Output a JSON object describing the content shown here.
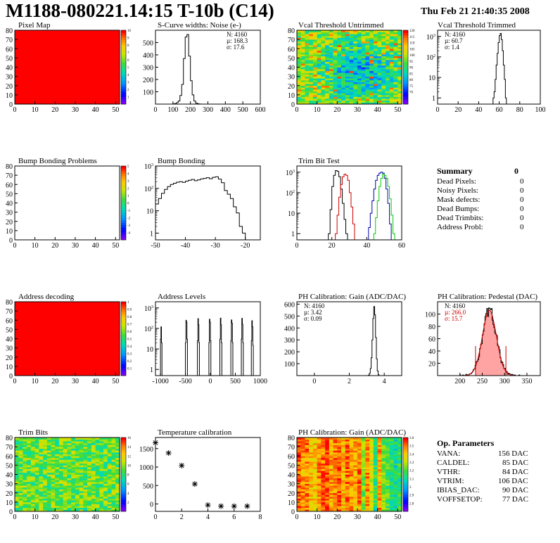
{
  "header": {
    "title": "M1188-080221.14:15 T-10b (C14)",
    "timestamp": "Thu Feb 21 21:40:35 2008"
  },
  "summary": {
    "title": "Summary",
    "total": "0",
    "rows": [
      {
        "label": "Dead Pixels:",
        "value": "0"
      },
      {
        "label": "Noisy Pixels:",
        "value": "0"
      },
      {
        "label": "Mask defects:",
        "value": "0"
      },
      {
        "label": "Dead Bumps:",
        "value": "0"
      },
      {
        "label": "Dead Trimbits:",
        "value": "0"
      },
      {
        "label": "Address Probl:",
        "value": "0"
      }
    ]
  },
  "op_parameters": {
    "title": "Op. Parameters",
    "rows": [
      {
        "label": "VANA:",
        "value": "156 DAC"
      },
      {
        "label": "CALDEL:",
        "value": "85 DAC"
      },
      {
        "label": "VTHR:",
        "value": "84 DAC"
      },
      {
        "label": "VTRIM:",
        "value": "106 DAC"
      },
      {
        "label": "IBIAS_DAC:",
        "value": "90 DAC"
      },
      {
        "label": "VOFFSETOP:",
        "value": "77 DAC"
      }
    ]
  },
  "colors": {
    "histogram_line": "#000000",
    "map_red": "#ff0000",
    "trim_red": "#cc0000",
    "trim_blue": "#0000aa",
    "trim_green": "#00cc00",
    "fit_red": "#cc0000",
    "pedestal_fill": "#ff9999"
  },
  "chart_data": [
    {
      "id": "pixel_map",
      "type": "heatmap",
      "title": "Pixel Map",
      "xlim": [
        0,
        52
      ],
      "ylim": [
        0,
        80
      ],
      "xticks": [
        "0",
        "10",
        "20",
        "30",
        "40",
        "50"
      ],
      "yticks": [
        "0",
        "10",
        "20",
        "30",
        "40",
        "50",
        "60",
        "70",
        "80"
      ],
      "zlim": [
        0,
        10
      ],
      "zticks": [
        "1",
        "2",
        "3",
        "4",
        "5",
        "6",
        "7",
        "8",
        "9",
        "10"
      ],
      "pattern": "uniform",
      "uniform_value": 10
    },
    {
      "id": "scurve",
      "type": "bar",
      "title": "S-Curve widths: Noise (e-)",
      "xlim": [
        0,
        600
      ],
      "ylim": [
        0,
        600
      ],
      "log": false,
      "xticks": [
        "0",
        "100",
        "200",
        "300",
        "400",
        "500",
        "600"
      ],
      "yticks": [
        "100",
        "200",
        "300",
        "400",
        "500"
      ],
      "stats": [
        "N: 4160",
        "µ: 168.3",
        "σ: 17.6"
      ],
      "binwidth": 10,
      "bins": [
        [
          100,
          2
        ],
        [
          110,
          4
        ],
        [
          120,
          12
        ],
        [
          130,
          25
        ],
        [
          140,
          70
        ],
        [
          150,
          160
        ],
        [
          160,
          370
        ],
        [
          170,
          545
        ],
        [
          180,
          565
        ],
        [
          190,
          390
        ],
        [
          200,
          190
        ],
        [
          210,
          75
        ],
        [
          220,
          25
        ],
        [
          230,
          8
        ],
        [
          240,
          3
        ],
        [
          250,
          1
        ]
      ]
    },
    {
      "id": "vcal_untrimmed",
      "type": "heatmap",
      "title": "Vcal Threshold Untrimmed",
      "xlim": [
        0,
        52
      ],
      "ylim": [
        0,
        80
      ],
      "xticks": [
        "0",
        "10",
        "20",
        "30",
        "40",
        "50"
      ],
      "yticks": [
        "0",
        "10",
        "20",
        "30",
        "40",
        "50",
        "60",
        "70",
        "80"
      ],
      "zlim": [
        60,
        120
      ],
      "zticks": [
        "70",
        "75",
        "80",
        "85",
        "90",
        "95",
        "100",
        "105",
        "110",
        "115",
        "120"
      ],
      "pattern": "noise-bowl"
    },
    {
      "id": "vcal_trimmed",
      "type": "bar",
      "title": "Vcal Threshold Trimmed",
      "xlim": [
        0,
        100
      ],
      "ylim": [
        0.5,
        2000
      ],
      "log": true,
      "xticks": [
        "0",
        "20",
        "40",
        "60",
        "80",
        "100"
      ],
      "stats": [
        "N: 4160",
        "µ: 60.7",
        "σ: 1.4"
      ],
      "binwidth": 1,
      "bins": [
        [
          54,
          1
        ],
        [
          55,
          2
        ],
        [
          56,
          8
        ],
        [
          57,
          40
        ],
        [
          58,
          150
        ],
        [
          59,
          500
        ],
        [
          60,
          1100
        ],
        [
          61,
          1400
        ],
        [
          62,
          700
        ],
        [
          63,
          200
        ],
        [
          64,
          40
        ],
        [
          65,
          8
        ],
        [
          66,
          1
        ]
      ]
    },
    {
      "id": "bump_problems",
      "type": "heatmap",
      "title": "Bump Bonding Problems",
      "xlim": [
        0,
        52
      ],
      "ylim": [
        0,
        80
      ],
      "xticks": [
        "0",
        "10",
        "20",
        "30",
        "40",
        "50"
      ],
      "yticks": [
        "0",
        "10",
        "20",
        "30",
        "40",
        "50",
        "60",
        "70",
        "80"
      ],
      "zlim": [
        -5,
        5
      ],
      "zticks": [
        "-4",
        "-3",
        "-2",
        "-1",
        "0",
        "1",
        "2",
        "3",
        "4",
        "5"
      ],
      "pattern": "empty"
    },
    {
      "id": "bump_bonding",
      "type": "bar",
      "title": "Bump Bonding",
      "xlim": [
        -50,
        -15
      ],
      "ylim": [
        0.5,
        1000
      ],
      "log": true,
      "xticks": [
        "-50",
        "-40",
        "-30",
        "-20"
      ],
      "binwidth": 1,
      "bins": [
        [
          -50,
          20
        ],
        [
          -49,
          35
        ],
        [
          -48,
          60
        ],
        [
          -47,
          90
        ],
        [
          -46,
          120
        ],
        [
          -45,
          150
        ],
        [
          -44,
          170
        ],
        [
          -43,
          190
        ],
        [
          -42,
          200
        ],
        [
          -41,
          185
        ],
        [
          -40,
          210
        ],
        [
          -39,
          230
        ],
        [
          -38,
          250
        ],
        [
          -37,
          220
        ],
        [
          -36,
          240
        ],
        [
          -35,
          265
        ],
        [
          -34,
          280
        ],
        [
          -33,
          300
        ],
        [
          -32,
          270
        ],
        [
          -31,
          310
        ],
        [
          -30,
          330
        ],
        [
          -29,
          260
        ],
        [
          -28,
          180
        ],
        [
          -27,
          80
        ],
        [
          -26,
          55
        ],
        [
          -25,
          35
        ],
        [
          -24,
          15
        ],
        [
          -23,
          8
        ],
        [
          -22,
          2
        ],
        [
          -21,
          1
        ]
      ]
    },
    {
      "id": "trim_bit_test",
      "type": "line",
      "title": "Trim Bit Test",
      "xlim": [
        0,
        60
      ],
      "ylim": [
        0.5,
        2000
      ],
      "log": true,
      "xticks": [
        "0",
        "20",
        "40",
        "60"
      ],
      "binwidth": 1,
      "series": [
        {
          "color": "#000000",
          "bins": [
            [
              18,
              1
            ],
            [
              19,
              15
            ],
            [
              20,
              200
            ],
            [
              21,
              700
            ],
            [
              22,
              1200
            ],
            [
              23,
              1100
            ],
            [
              24,
              600
            ],
            [
              25,
              150
            ],
            [
              26,
              30
            ],
            [
              27,
              5
            ],
            [
              28,
              1
            ]
          ]
        },
        {
          "color": "#cc0000",
          "bins": [
            [
              22,
              1
            ],
            [
              23,
              8
            ],
            [
              24,
              60
            ],
            [
              25,
              250
            ],
            [
              26,
              600
            ],
            [
              27,
              800
            ],
            [
              28,
              700
            ],
            [
              29,
              400
            ],
            [
              30,
              100
            ],
            [
              31,
              20
            ],
            [
              32,
              3
            ]
          ]
        },
        {
          "color": "#0000aa",
          "bins": [
            [
              41,
              2
            ],
            [
              42,
              10
            ],
            [
              43,
              40
            ],
            [
              44,
              150
            ],
            [
              45,
              400
            ],
            [
              46,
              700
            ],
            [
              47,
              900
            ],
            [
              48,
              1000
            ],
            [
              49,
              900
            ],
            [
              50,
              500
            ],
            [
              51,
              150
            ],
            [
              52,
              30
            ],
            [
              53,
              3
            ]
          ]
        },
        {
          "color": "#00cc00",
          "bins": [
            [
              44,
              1
            ],
            [
              45,
              6
            ],
            [
              46,
              40
            ],
            [
              47,
              200
            ],
            [
              48,
              500
            ],
            [
              49,
              800
            ],
            [
              50,
              700
            ],
            [
              51,
              500
            ],
            [
              52,
              200
            ],
            [
              53,
              50
            ],
            [
              54,
              8
            ],
            [
              55,
              1
            ]
          ]
        }
      ]
    },
    {
      "id": "address_decoding",
      "type": "heatmap",
      "title": "Address decoding",
      "xlim": [
        0,
        52
      ],
      "ylim": [
        0,
        80
      ],
      "xticks": [
        "0",
        "10",
        "20",
        "30",
        "40",
        "50"
      ],
      "yticks": [
        "0",
        "10",
        "20",
        "30",
        "40",
        "50",
        "60",
        "70",
        "80"
      ],
      "zlim": [
        0,
        1
      ],
      "zticks": [
        "0.1",
        "0.2",
        "0.3",
        "0.4",
        "0.5",
        "0.6",
        "0.7",
        "0.8",
        "0.9",
        "1"
      ],
      "pattern": "uniform",
      "uniform_value": 1
    },
    {
      "id": "address_levels",
      "type": "bar",
      "title": "Address Levels",
      "xlim": [
        -1100,
        1000
      ],
      "ylim": [
        0.5,
        2000
      ],
      "log": true,
      "xticks": [
        "-1000",
        "-500",
        "0",
        "500",
        "1000"
      ],
      "binwidth": 10,
      "bins": [
        [
          -1000,
          30
        ],
        [
          -990,
          120
        ],
        [
          -980,
          20
        ],
        [
          -500,
          20
        ],
        [
          -490,
          250
        ],
        [
          -480,
          200
        ],
        [
          -470,
          30
        ],
        [
          -260,
          25
        ],
        [
          -250,
          300
        ],
        [
          -240,
          150
        ],
        [
          -230,
          20
        ],
        [
          -30,
          20
        ],
        [
          -20,
          280
        ],
        [
          -10,
          200
        ],
        [
          0,
          25
        ],
        [
          190,
          30
        ],
        [
          200,
          320
        ],
        [
          210,
          150
        ],
        [
          220,
          20
        ],
        [
          410,
          25
        ],
        [
          420,
          260
        ],
        [
          430,
          180
        ],
        [
          440,
          20
        ],
        [
          620,
          30
        ],
        [
          630,
          310
        ],
        [
          640,
          160
        ],
        [
          650,
          20
        ],
        [
          820,
          25
        ],
        [
          830,
          240
        ],
        [
          840,
          120
        ],
        [
          850,
          15
        ]
      ]
    },
    {
      "id": "ph_gain_hist",
      "type": "bar",
      "title": "PH Calibration: Gain (ADC/DAC)",
      "xlim": [
        -1,
        5
      ],
      "ylim": [
        0,
        620
      ],
      "log": false,
      "xticks": [
        "0",
        "2",
        "4"
      ],
      "yticks": [
        "100",
        "200",
        "300",
        "400",
        "500",
        "600"
      ],
      "stats": [
        "N: 4160",
        "µ: 3.42",
        "σ: 0.09"
      ],
      "binwidth": 0.05,
      "bins": [
        [
          3.1,
          5
        ],
        [
          3.15,
          20
        ],
        [
          3.2,
          60
        ],
        [
          3.25,
          150
        ],
        [
          3.3,
          300
        ],
        [
          3.35,
          480
        ],
        [
          3.4,
          580
        ],
        [
          3.45,
          510
        ],
        [
          3.5,
          320
        ],
        [
          3.55,
          140
        ],
        [
          3.6,
          40
        ],
        [
          3.65,
          8
        ]
      ]
    },
    {
      "id": "ph_pedestal",
      "type": "bar",
      "title": "PH Calibration: Pedestal (DAC)",
      "xlim": [
        150,
        380
      ],
      "ylim": [
        0,
        120
      ],
      "log": false,
      "xticks": [
        "200",
        "250",
        "300",
        "350"
      ],
      "yticks": [
        "20",
        "40",
        "60",
        "80",
        "100"
      ],
      "stats": [
        "N: 4160",
        "µ: 266.0",
        "σ: 15.7"
      ],
      "stats_colors": [
        "#000000",
        "#cc0000",
        "#cc0000"
      ],
      "fit": {
        "mean": 266.0,
        "sigma": 15.7,
        "amplitude": 106
      },
      "cut_lines": [
        235,
        303
      ],
      "binwidth": 2
    },
    {
      "id": "trim_bits",
      "type": "heatmap",
      "title": "Trim Bits",
      "xlim": [
        0,
        52
      ],
      "ylim": [
        0,
        80
      ],
      "xticks": [
        "0",
        "10",
        "20",
        "30",
        "40",
        "50"
      ],
      "yticks": [
        "0",
        "10",
        "20",
        "30",
        "40",
        "50",
        "60",
        "70",
        "80"
      ],
      "zlim": [
        0,
        16
      ],
      "zticks": [
        "2",
        "4",
        "6",
        "8",
        "10",
        "12",
        "14",
        "16"
      ],
      "pattern": "trim"
    },
    {
      "id": "temp_calib",
      "type": "scatter",
      "title": "Temperature calibration",
      "xlim": [
        0,
        8
      ],
      "ylim": [
        -200,
        1800
      ],
      "xticks": [
        "0",
        "2",
        "4",
        "6",
        "8"
      ],
      "yticks": [
        "0",
        "500",
        "1000",
        "1500"
      ],
      "x": [
        0,
        1,
        2,
        3,
        4,
        5,
        6,
        7
      ],
      "y": [
        1660,
        1380,
        1040,
        540,
        -30,
        -60,
        -60,
        -60
      ]
    },
    {
      "id": "ph_gain_map",
      "type": "heatmap",
      "title": "PH Calibration: Gain (ADC/DAC)",
      "xlim": [
        0,
        52
      ],
      "ylim": [
        0,
        80
      ],
      "xticks": [
        "0",
        "10",
        "20",
        "30",
        "40",
        "50"
      ],
      "yticks": [
        "0",
        "10",
        "20",
        "30",
        "40",
        "50",
        "60",
        "70",
        "80"
      ],
      "zlim": [
        2.7,
        3.6
      ],
      "zticks": [
        "2.8",
        "2.9",
        "3",
        "3.1",
        "3.2",
        "3.3",
        "3.4",
        "3.5",
        "3.6"
      ],
      "pattern": "gain"
    }
  ]
}
